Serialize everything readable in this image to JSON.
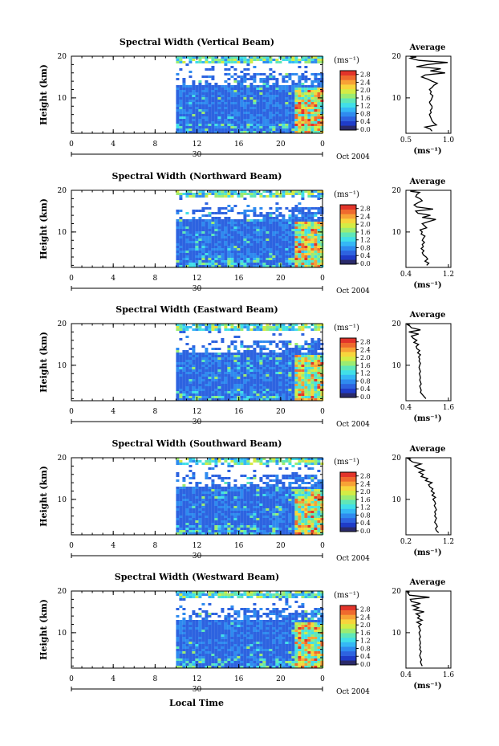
{
  "figure": {
    "x_axis_title": "Local Time",
    "colorbar_unit": "(ms⁻¹)",
    "profile_unit": "(ms⁻¹)",
    "date_label": "Oct 2004",
    "day_label": "30",
    "colors": {
      "background": "#ffffff",
      "ink": "#000000",
      "colormap": [
        "#2a2a6a",
        "#1f3cc8",
        "#2d63e0",
        "#2f8bef",
        "#35b8f5",
        "#41dfe8",
        "#5fe7b8",
        "#9bec72",
        "#d4ec45",
        "#f7d53c",
        "#f7a236",
        "#ef6a2e",
        "#e2342a"
      ]
    }
  },
  "panels": [
    {
      "title": "Spectral Width (Vertical Beam)",
      "profile_title": "Average",
      "ylabel": "Height (km)",
      "xlabel_local": "Local Time",
      "colorbar_ticks": [
        "0.0",
        "0.4",
        "0.8",
        "1.2",
        "1.6",
        "2.0",
        "2.4",
        "2.8"
      ],
      "chart_data": {
        "type": "heatmap",
        "x_unit": "hour local time",
        "x_ticks": [
          "0",
          "4",
          "8",
          "12",
          "16",
          "20",
          "0"
        ],
        "x_range": [
          0,
          24
        ],
        "y_ticks": [
          "10",
          "20"
        ],
        "y_range": [
          1.5,
          20
        ],
        "data_start_hour": 10,
        "colorbar_range": [
          0,
          2.8
        ]
      },
      "profile": {
        "type": "line",
        "x_ticks": [
          "0.5",
          "1.0"
        ],
        "xlim": [
          0.5,
          1.0
        ],
        "y_ticks": [
          "10",
          "20"
        ],
        "ylim": [
          1.5,
          20
        ],
        "x": [
          0.8,
          0.78,
          0.72,
          0.85,
          0.82,
          0.8,
          0.79,
          0.78,
          0.77,
          0.79,
          0.78,
          0.8,
          0.8,
          0.78,
          0.77,
          0.79,
          0.8,
          0.81,
          0.78,
          0.79,
          0.77,
          0.8,
          0.82,
          0.86,
          0.8,
          0.75,
          0.68,
          0.72,
          0.95,
          0.78,
          0.9,
          0.62,
          0.75,
          0.98,
          0.65,
          0.55,
          0.58,
          0.62,
          0.55,
          0.58
        ],
        "y": [
          2.0,
          2.5,
          3.0,
          3.5,
          4.0,
          4.5,
          5.0,
          5.5,
          6.0,
          6.5,
          7.0,
          7.5,
          8.0,
          8.5,
          9.0,
          9.5,
          10.0,
          10.5,
          11.0,
          11.5,
          12.0,
          12.5,
          13.0,
          13.5,
          14.0,
          14.5,
          15.0,
          15.5,
          16.0,
          16.5,
          17.0,
          17.5,
          18.0,
          18.5,
          19.0,
          19.5,
          19.7,
          19.8,
          19.9,
          20.0
        ]
      }
    },
    {
      "title": "Spectral Width (Northward Beam)",
      "profile_title": "Average",
      "ylabel": "Height (km)",
      "colorbar_ticks": [
        "0.0",
        "0.4",
        "0.8",
        "1.2",
        "1.6",
        "2.0",
        "2.4",
        "2.8"
      ],
      "chart_data": {
        "type": "heatmap",
        "x_ticks": [
          "0",
          "4",
          "8",
          "12",
          "16",
          "20",
          "0"
        ],
        "x_range": [
          0,
          24
        ],
        "y_ticks": [
          "10",
          "20"
        ],
        "y_range": [
          1.5,
          20
        ],
        "data_start_hour": 10,
        "colorbar_range": [
          0,
          2.8
        ]
      },
      "profile": {
        "type": "line",
        "x_ticks": [
          "0.4",
          "1.2"
        ],
        "xlim": [
          0.4,
          1.2
        ],
        "y_ticks": [
          "10",
          "20"
        ],
        "ylim": [
          1.5,
          20
        ],
        "x": [
          0.78,
          0.82,
          0.75,
          0.8,
          0.77,
          0.72,
          0.7,
          0.73,
          0.68,
          0.72,
          0.7,
          0.74,
          0.7,
          0.72,
          0.75,
          0.68,
          0.7,
          0.66,
          0.78,
          0.74,
          0.7,
          0.82,
          0.95,
          0.7,
          0.85,
          0.62,
          0.58,
          0.9,
          0.6,
          0.55,
          0.62,
          0.7,
          0.66,
          0.58,
          0.6,
          0.65,
          0.52,
          0.48,
          0.55,
          0.6
        ],
        "y": [
          2.0,
          2.5,
          3.0,
          3.5,
          4.0,
          4.5,
          5.0,
          5.5,
          6.0,
          6.5,
          7.0,
          7.5,
          8.0,
          8.5,
          9.0,
          9.5,
          10.0,
          10.5,
          11.0,
          11.5,
          12.0,
          12.5,
          13.0,
          13.5,
          14.0,
          14.5,
          15.0,
          15.5,
          16.0,
          16.5,
          17.0,
          17.5,
          18.0,
          18.5,
          19.0,
          19.5,
          19.7,
          19.8,
          19.9,
          20.0
        ]
      }
    },
    {
      "title": "Spectral Width (Eastward Beam)",
      "profile_title": "Average",
      "ylabel": "Height (km)",
      "colorbar_ticks": [
        "0.0",
        "0.4",
        "0.8",
        "1.2",
        "1.6",
        "2.0",
        "2.4",
        "2.8"
      ],
      "chart_data": {
        "type": "heatmap",
        "x_ticks": [
          "0",
          "4",
          "8",
          "12",
          "16",
          "20",
          "0"
        ],
        "x_range": [
          0,
          24
        ],
        "y_ticks": [
          "10",
          "20"
        ],
        "y_range": [
          1.5,
          20
        ],
        "data_start_hour": 10,
        "colorbar_range": [
          0,
          2.8
        ]
      },
      "profile": {
        "type": "line",
        "x_ticks": [
          "0.4",
          "1.6"
        ],
        "xlim": [
          0.4,
          1.6
        ],
        "y_ticks": [
          "10",
          "20"
        ],
        "ylim": [
          1.5,
          20
        ],
        "x": [
          0.95,
          0.9,
          0.85,
          0.8,
          0.82,
          0.8,
          0.78,
          0.82,
          0.8,
          0.78,
          0.8,
          0.79,
          0.77,
          0.8,
          0.78,
          0.76,
          0.78,
          0.8,
          0.76,
          0.78,
          0.75,
          0.8,
          0.72,
          0.78,
          0.7,
          0.68,
          0.75,
          0.62,
          0.7,
          0.6,
          0.55,
          0.75,
          0.48,
          0.8,
          0.55,
          0.5,
          0.45,
          0.48,
          0.42,
          0.46
        ],
        "y": [
          2.0,
          2.5,
          3.0,
          3.5,
          4.0,
          4.5,
          5.0,
          5.5,
          6.0,
          6.5,
          7.0,
          7.5,
          8.0,
          8.5,
          9.0,
          9.5,
          10.0,
          10.5,
          11.0,
          11.5,
          12.0,
          12.5,
          13.0,
          13.5,
          14.0,
          14.5,
          15.0,
          15.5,
          16.0,
          16.5,
          17.0,
          17.5,
          18.0,
          18.5,
          19.0,
          19.5,
          19.7,
          19.8,
          19.9,
          20.0
        ]
      }
    },
    {
      "title": "Spectral Width (Southward Beam)",
      "profile_title": "Average",
      "ylabel": "Height (km)",
      "colorbar_ticks": [
        "0.0",
        "0.4",
        "0.8",
        "1.2",
        "1.6",
        "2.0",
        "2.4",
        "2.8"
      ],
      "chart_data": {
        "type": "heatmap",
        "x_ticks": [
          "0",
          "4",
          "8",
          "12",
          "16",
          "20",
          "0"
        ],
        "x_range": [
          0,
          24
        ],
        "y_ticks": [
          "10",
          "20"
        ],
        "y_range": [
          1.5,
          20
        ],
        "data_start_hour": 10,
        "colorbar_range": [
          0,
          2.8
        ]
      },
      "profile": {
        "type": "line",
        "x_ticks": [
          "0.2",
          "1.2"
        ],
        "xlim": [
          0.2,
          1.2
        ],
        "y_ticks": [
          "10",
          "20"
        ],
        "ylim": [
          1.5,
          20
        ],
        "x": [
          0.95,
          0.9,
          0.88,
          0.92,
          0.9,
          0.86,
          0.88,
          0.9,
          0.86,
          0.88,
          0.86,
          0.9,
          0.88,
          0.85,
          0.88,
          0.86,
          0.82,
          0.88,
          0.8,
          0.85,
          0.78,
          0.82,
          0.75,
          0.72,
          0.8,
          0.65,
          0.7,
          0.55,
          0.6,
          0.5,
          0.62,
          0.48,
          0.4,
          0.55,
          0.35,
          0.28,
          0.3,
          0.25,
          0.22,
          0.3
        ],
        "y": [
          2.0,
          2.5,
          3.0,
          3.5,
          4.0,
          4.5,
          5.0,
          5.5,
          6.0,
          6.5,
          7.0,
          7.5,
          8.0,
          8.5,
          9.0,
          9.5,
          10.0,
          10.5,
          11.0,
          11.5,
          12.0,
          12.5,
          13.0,
          13.5,
          14.0,
          14.5,
          15.0,
          15.5,
          16.0,
          16.5,
          17.0,
          17.5,
          18.0,
          18.5,
          19.0,
          19.5,
          19.7,
          19.8,
          19.9,
          20.0
        ]
      }
    },
    {
      "title": "Spectral Width (Westward Beam)",
      "profile_title": "Average",
      "ylabel": "Height (km)",
      "colorbar_ticks": [
        "0.0",
        "0.4",
        "0.8",
        "1.2",
        "1.6",
        "2.0",
        "2.4",
        "2.8"
      ],
      "chart_data": {
        "type": "heatmap",
        "x_ticks": [
          "0",
          "4",
          "8",
          "12",
          "16",
          "20",
          "0"
        ],
        "x_range": [
          0,
          24
        ],
        "y_ticks": [
          "10",
          "20"
        ],
        "y_range": [
          1.5,
          20
        ],
        "data_start_hour": 10,
        "colorbar_range": [
          0,
          2.8
        ]
      },
      "profile": {
        "type": "line",
        "x_ticks": [
          "0.4",
          "1.6"
        ],
        "xlim": [
          0.4,
          1.6
        ],
        "y_ticks": [
          "10",
          "20"
        ],
        "ylim": [
          1.5,
          20
        ],
        "x": [
          0.85,
          0.82,
          0.8,
          0.83,
          0.8,
          0.78,
          0.8,
          0.82,
          0.78,
          0.8,
          0.78,
          0.8,
          0.79,
          0.77,
          0.8,
          0.78,
          0.76,
          0.8,
          0.78,
          0.75,
          0.82,
          0.7,
          0.85,
          0.72,
          0.78,
          0.68,
          0.9,
          0.62,
          0.75,
          0.58,
          0.8,
          0.55,
          0.52,
          1.05,
          0.5,
          0.45,
          0.48,
          0.42,
          0.46,
          0.5
        ],
        "y": [
          2.0,
          2.5,
          3.0,
          3.5,
          4.0,
          4.5,
          5.0,
          5.5,
          6.0,
          6.5,
          7.0,
          7.5,
          8.0,
          8.5,
          9.0,
          9.5,
          10.0,
          10.5,
          11.0,
          11.5,
          12.0,
          12.5,
          13.0,
          13.5,
          14.0,
          14.5,
          15.0,
          15.5,
          16.0,
          16.5,
          17.0,
          17.5,
          18.0,
          18.5,
          19.0,
          19.5,
          19.7,
          19.8,
          19.9,
          20.0
        ]
      }
    }
  ]
}
